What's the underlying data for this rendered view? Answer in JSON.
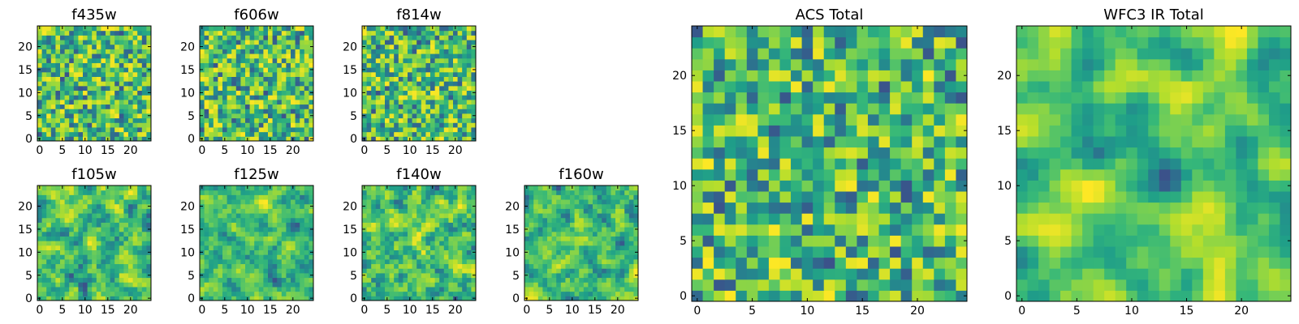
{
  "figure": {
    "description_free": true
  },
  "chart_data": [
    {
      "type": "heatmap",
      "title": "f435w",
      "xlim": [
        0,
        25
      ],
      "ylim": [
        0,
        25
      ],
      "xticks": [
        0,
        5,
        10,
        15,
        20
      ],
      "yticks": [
        0,
        5,
        10,
        15,
        20
      ],
      "colormap": "viridis",
      "seed": 11,
      "smooth": 0
    },
    {
      "type": "heatmap",
      "title": "f606w",
      "xlim": [
        0,
        25
      ],
      "ylim": [
        0,
        25
      ],
      "xticks": [
        0,
        5,
        10,
        15,
        20
      ],
      "yticks": [
        0,
        5,
        10,
        15,
        20
      ],
      "colormap": "viridis",
      "seed": 23,
      "smooth": 0
    },
    {
      "type": "heatmap",
      "title": "f814w",
      "xlim": [
        0,
        25
      ],
      "ylim": [
        0,
        25
      ],
      "xticks": [
        0,
        5,
        10,
        15,
        20
      ],
      "yticks": [
        0,
        5,
        10,
        15,
        20
      ],
      "colormap": "viridis",
      "seed": 37,
      "smooth": 0
    },
    {
      "type": "heatmap",
      "title": "f105w",
      "xlim": [
        0,
        25
      ],
      "ylim": [
        0,
        25
      ],
      "xticks": [
        0,
        5,
        10,
        15,
        20
      ],
      "yticks": [
        0,
        5,
        10,
        15,
        20
      ],
      "colormap": "viridis",
      "seed": 41,
      "smooth": 1
    },
    {
      "type": "heatmap",
      "title": "f125w",
      "xlim": [
        0,
        25
      ],
      "ylim": [
        0,
        25
      ],
      "xticks": [
        0,
        5,
        10,
        15,
        20
      ],
      "yticks": [
        0,
        5,
        10,
        15,
        20
      ],
      "colormap": "viridis",
      "seed": 53,
      "smooth": 1
    },
    {
      "type": "heatmap",
      "title": "f140w",
      "xlim": [
        0,
        25
      ],
      "ylim": [
        0,
        25
      ],
      "xticks": [
        0,
        5,
        10,
        15,
        20
      ],
      "yticks": [
        0,
        5,
        10,
        15,
        20
      ],
      "colormap": "viridis",
      "seed": 67,
      "smooth": 1
    },
    {
      "type": "heatmap",
      "title": "f160w",
      "xlim": [
        0,
        25
      ],
      "ylim": [
        0,
        25
      ],
      "xticks": [
        0,
        5,
        10,
        15,
        20
      ],
      "yticks": [
        0,
        5,
        10,
        15,
        20
      ],
      "colormap": "viridis",
      "seed": 79,
      "smooth": 1
    },
    {
      "type": "heatmap",
      "title": "ACS Total",
      "xlim": [
        0,
        25
      ],
      "ylim": [
        0,
        25
      ],
      "xticks": [
        0,
        5,
        10,
        15,
        20
      ],
      "yticks": [
        0,
        5,
        10,
        15,
        20
      ],
      "colormap": "viridis",
      "seed": 83,
      "smooth": 0
    },
    {
      "type": "heatmap",
      "title": "WFC3 IR Total",
      "xlim": [
        0,
        25
      ],
      "ylim": [
        0,
        25
      ],
      "xticks": [
        0,
        5,
        10,
        15,
        20
      ],
      "yticks": [
        0,
        5,
        10,
        15,
        20
      ],
      "colormap": "viridis",
      "seed": 97,
      "smooth": 2
    }
  ]
}
